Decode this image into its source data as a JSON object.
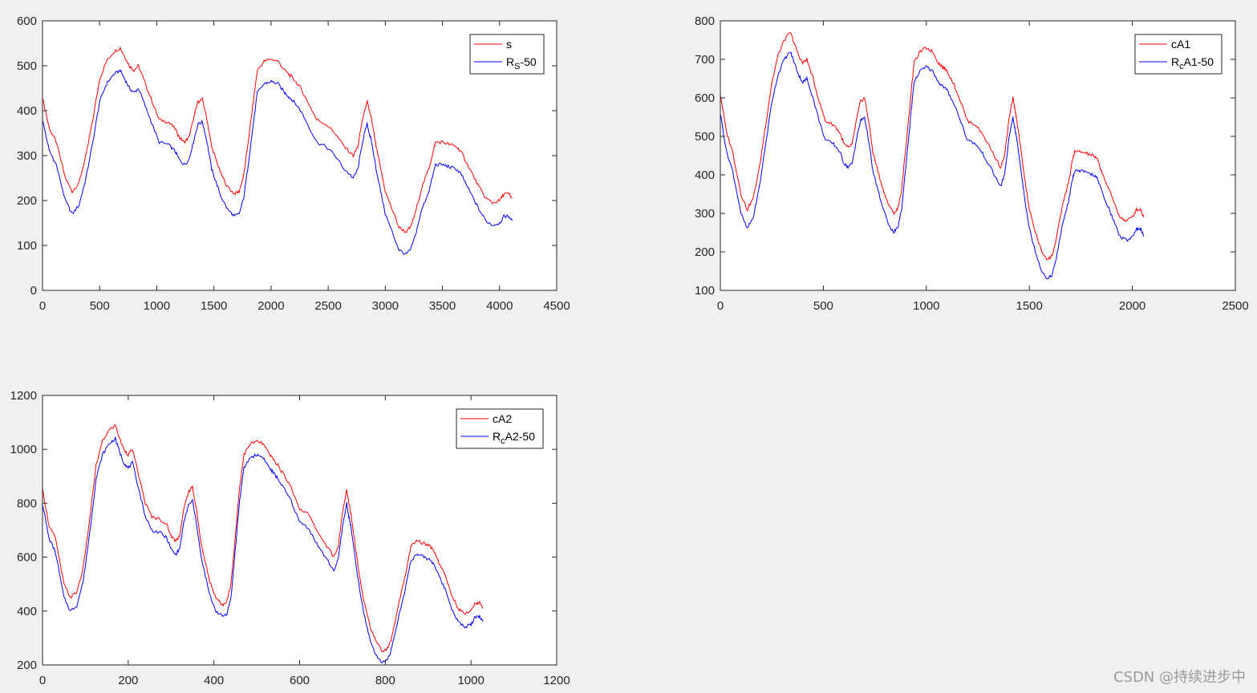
{
  "watermark": "CSDN @持续进步中",
  "colors": {
    "red": "#ff0000",
    "blue": "#0000ff",
    "axes": "#262626",
    "figure_bg": "#f0f0f0"
  },
  "chart_data": [
    {
      "type": "line",
      "xlim": [
        0,
        4500
      ],
      "ylim": [
        0,
        600
      ],
      "xticks": [
        "0",
        "500",
        "1000",
        "1500",
        "2000",
        "2500",
        "3000",
        "3500",
        "4000",
        "4500"
      ],
      "yticks": [
        "0",
        "100",
        "200",
        "300",
        "400",
        "500",
        "600"
      ],
      "legend_position": "top-right",
      "series": [
        {
          "name": "s",
          "color": "#ff0000",
          "x": [
            0,
            60,
            120,
            200,
            260,
            320,
            380,
            440,
            500,
            560,
            620,
            680,
            720,
            760,
            800,
            840,
            900,
            960,
            1020,
            1100,
            1160,
            1200,
            1240,
            1280,
            1320,
            1360,
            1400,
            1440,
            1480,
            1520,
            1560,
            1620,
            1680,
            1720,
            1760,
            1800,
            1840,
            1880,
            1940,
            2000,
            2060,
            2120,
            2160,
            2200,
            2260,
            2320,
            2400,
            2480,
            2560,
            2640,
            2720,
            2760,
            2800,
            2840,
            2860,
            2880,
            2920,
            2960,
            3000,
            3060,
            3120,
            3180,
            3220,
            3260,
            3320,
            3380,
            3420,
            3440,
            3500,
            3560,
            3620,
            3660,
            3700,
            3760,
            3820,
            3880,
            3940,
            4000,
            4040,
            4080,
            4110
          ],
          "y": [
            430,
            360,
            330,
            250,
            220,
            240,
            300,
            380,
            470,
            510,
            530,
            540,
            520,
            500,
            490,
            500,
            460,
            420,
            380,
            375,
            360,
            340,
            330,
            340,
            380,
            420,
            425,
            380,
            320,
            290,
            260,
            230,
            215,
            220,
            255,
            330,
            410,
            490,
            510,
            515,
            510,
            490,
            480,
            470,
            450,
            420,
            380,
            370,
            350,
            320,
            300,
            320,
            380,
            420,
            400,
            380,
            320,
            270,
            220,
            180,
            140,
            130,
            140,
            170,
            230,
            270,
            310,
            330,
            330,
            325,
            320,
            310,
            290,
            260,
            230,
            205,
            195,
            200,
            215,
            215,
            205
          ]
        },
        {
          "name": "R_S-50",
          "color": "#0000ff",
          "x": [
            0,
            60,
            120,
            200,
            260,
            320,
            380,
            440,
            500,
            560,
            620,
            680,
            720,
            760,
            800,
            840,
            900,
            960,
            1020,
            1100,
            1160,
            1200,
            1240,
            1280,
            1320,
            1360,
            1400,
            1440,
            1480,
            1520,
            1560,
            1620,
            1680,
            1720,
            1760,
            1800,
            1840,
            1880,
            1940,
            2000,
            2060,
            2120,
            2160,
            2200,
            2260,
            2320,
            2400,
            2480,
            2560,
            2640,
            2720,
            2760,
            2800,
            2840,
            2860,
            2880,
            2920,
            2960,
            3000,
            3060,
            3120,
            3180,
            3220,
            3260,
            3320,
            3380,
            3420,
            3440,
            3500,
            3560,
            3620,
            3660,
            3700,
            3760,
            3820,
            3880,
            3940,
            4000,
            4040,
            4080,
            4110
          ],
          "y": [
            380,
            310,
            280,
            200,
            170,
            190,
            250,
            330,
            420,
            460,
            480,
            490,
            470,
            450,
            440,
            450,
            410,
            370,
            330,
            325,
            310,
            290,
            280,
            290,
            330,
            370,
            375,
            330,
            270,
            240,
            210,
            180,
            165,
            170,
            205,
            280,
            360,
            440,
            460,
            465,
            460,
            440,
            430,
            420,
            400,
            370,
            330,
            320,
            300,
            270,
            250,
            270,
            330,
            370,
            350,
            330,
            270,
            220,
            170,
            130,
            90,
            80,
            90,
            120,
            180,
            220,
            260,
            280,
            280,
            275,
            270,
            260,
            240,
            210,
            180,
            155,
            145,
            150,
            165,
            165,
            155
          ]
        }
      ]
    },
    {
      "type": "line",
      "xlim": [
        0,
        2500
      ],
      "ylim": [
        100,
        800
      ],
      "xticks": [
        "0",
        "500",
        "1000",
        "1500",
        "2000",
        "2500"
      ],
      "yticks": [
        "100",
        "200",
        "300",
        "400",
        "500",
        "600",
        "700",
        "800"
      ],
      "legend_position": "top-right",
      "series": [
        {
          "name": "cA1",
          "color": "#ff0000",
          "x": [
            0,
            30,
            60,
            100,
            130,
            160,
            190,
            220,
            250,
            280,
            310,
            340,
            360,
            380,
            400,
            420,
            450,
            480,
            510,
            550,
            580,
            600,
            620,
            640,
            660,
            680,
            700,
            720,
            740,
            760,
            780,
            810,
            840,
            860,
            880,
            900,
            920,
            940,
            970,
            1000,
            1030,
            1060,
            1080,
            1100,
            1130,
            1160,
            1200,
            1240,
            1280,
            1320,
            1360,
            1380,
            1400,
            1420,
            1430,
            1440,
            1460,
            1480,
            1500,
            1530,
            1560,
            1590,
            1610,
            1630,
            1660,
            1690,
            1710,
            1720,
            1750,
            1780,
            1810,
            1830,
            1850,
            1880,
            1910,
            1940,
            1970,
            2000,
            2020,
            2040,
            2055
          ],
          "y": [
            610,
            510,
            460,
            350,
            310,
            340,
            420,
            530,
            640,
            710,
            750,
            770,
            740,
            710,
            690,
            700,
            650,
            590,
            540,
            530,
            510,
            480,
            470,
            480,
            540,
            590,
            600,
            540,
            460,
            420,
            380,
            330,
            300,
            310,
            360,
            470,
            580,
            690,
            720,
            730,
            720,
            690,
            680,
            670,
            640,
            600,
            540,
            530,
            500,
            460,
            420,
            450,
            540,
            600,
            570,
            540,
            460,
            380,
            310,
            250,
            200,
            180,
            190,
            230,
            320,
            380,
            440,
            460,
            460,
            455,
            450,
            440,
            410,
            370,
            330,
            290,
            280,
            290,
            310,
            310,
            290
          ]
        },
        {
          "name": "R_cA1-50",
          "color": "#0000ff",
          "x": [
            0,
            30,
            60,
            100,
            130,
            160,
            190,
            220,
            250,
            280,
            310,
            340,
            360,
            380,
            400,
            420,
            450,
            480,
            510,
            550,
            580,
            600,
            620,
            640,
            660,
            680,
            700,
            720,
            740,
            760,
            780,
            810,
            840,
            860,
            880,
            900,
            920,
            940,
            970,
            1000,
            1030,
            1060,
            1080,
            1100,
            1130,
            1160,
            1200,
            1240,
            1280,
            1320,
            1360,
            1380,
            1400,
            1420,
            1430,
            1440,
            1460,
            1480,
            1500,
            1530,
            1560,
            1590,
            1610,
            1630,
            1660,
            1690,
            1710,
            1720,
            1750,
            1780,
            1810,
            1830,
            1850,
            1880,
            1910,
            1940,
            1970,
            2000,
            2020,
            2040,
            2055
          ],
          "y": [
            560,
            460,
            410,
            300,
            260,
            290,
            370,
            480,
            590,
            660,
            700,
            720,
            690,
            660,
            640,
            650,
            600,
            540,
            490,
            480,
            460,
            430,
            420,
            430,
            490,
            540,
            550,
            490,
            410,
            370,
            330,
            280,
            250,
            260,
            310,
            420,
            530,
            640,
            670,
            680,
            670,
            640,
            630,
            620,
            590,
            550,
            490,
            480,
            450,
            410,
            370,
            400,
            490,
            550,
            520,
            490,
            410,
            330,
            260,
            200,
            150,
            130,
            140,
            180,
            270,
            330,
            390,
            410,
            410,
            405,
            400,
            390,
            360,
            320,
            280,
            240,
            230,
            240,
            260,
            260,
            240
          ]
        }
      ]
    },
    {
      "type": "line",
      "xlim": [
        0,
        1200
      ],
      "ylim": [
        200,
        1200
      ],
      "xticks": [
        "0",
        "200",
        "400",
        "600",
        "800",
        "1000",
        "1200"
      ],
      "yticks": [
        "200",
        "400",
        "600",
        "800",
        "1000",
        "1200"
      ],
      "legend_position": "top-right",
      "series": [
        {
          "name": "cA2",
          "color": "#ff0000",
          "x": [
            0,
            15,
            30,
            50,
            65,
            80,
            95,
            110,
            125,
            140,
            155,
            170,
            180,
            190,
            200,
            210,
            225,
            240,
            255,
            275,
            290,
            300,
            310,
            320,
            330,
            340,
            350,
            360,
            370,
            380,
            390,
            405,
            420,
            430,
            440,
            450,
            460,
            470,
            485,
            500,
            515,
            530,
            540,
            550,
            565,
            580,
            600,
            620,
            640,
            660,
            680,
            690,
            700,
            710,
            715,
            720,
            730,
            740,
            750,
            765,
            780,
            795,
            805,
            815,
            830,
            845,
            855,
            860,
            875,
            890,
            905,
            915,
            925,
            940,
            955,
            970,
            985,
            1000,
            1010,
            1020,
            1028
          ],
          "y": [
            850,
            720,
            670,
            500,
            450,
            470,
            560,
            740,
            940,
            1030,
            1070,
            1090,
            1040,
            1000,
            980,
            1000,
            900,
            800,
            750,
            740,
            720,
            680,
            660,
            680,
            780,
            840,
            860,
            770,
            650,
            580,
            510,
            450,
            420,
            440,
            500,
            680,
            860,
            980,
            1020,
            1030,
            1020,
            980,
            960,
            940,
            900,
            860,
            780,
            760,
            700,
            650,
            600,
            640,
            760,
            850,
            800,
            760,
            640,
            530,
            440,
            340,
            280,
            250,
            260,
            300,
            420,
            520,
            600,
            640,
            660,
            650,
            640,
            620,
            580,
            530,
            460,
            410,
            390,
            400,
            430,
            430,
            410
          ]
        },
        {
          "name": "R_cA2-50",
          "color": "#0000ff",
          "x": [
            0,
            15,
            30,
            50,
            65,
            80,
            95,
            110,
            125,
            140,
            155,
            170,
            180,
            190,
            200,
            210,
            225,
            240,
            255,
            275,
            290,
            300,
            310,
            320,
            330,
            340,
            350,
            360,
            370,
            380,
            390,
            405,
            420,
            430,
            440,
            450,
            460,
            470,
            485,
            500,
            515,
            530,
            540,
            550,
            565,
            580,
            600,
            620,
            640,
            660,
            680,
            690,
            700,
            710,
            715,
            720,
            730,
            740,
            750,
            765,
            780,
            795,
            805,
            815,
            830,
            845,
            855,
            860,
            875,
            890,
            905,
            915,
            925,
            940,
            955,
            970,
            985,
            1000,
            1010,
            1020,
            1028
          ],
          "y": [
            800,
            670,
            620,
            450,
            400,
            420,
            510,
            690,
            890,
            980,
            1020,
            1040,
            990,
            950,
            930,
            950,
            850,
            750,
            700,
            690,
            670,
            630,
            610,
            630,
            730,
            790,
            810,
            720,
            600,
            530,
            460,
            400,
            380,
            390,
            450,
            630,
            810,
            930,
            970,
            980,
            970,
            930,
            910,
            890,
            850,
            810,
            730,
            710,
            650,
            600,
            550,
            590,
            710,
            800,
            750,
            710,
            590,
            480,
            390,
            290,
            230,
            210,
            220,
            260,
            370,
            470,
            550,
            590,
            610,
            600,
            590,
            570,
            530,
            480,
            410,
            360,
            340,
            350,
            380,
            380,
            360
          ]
        }
      ]
    }
  ]
}
